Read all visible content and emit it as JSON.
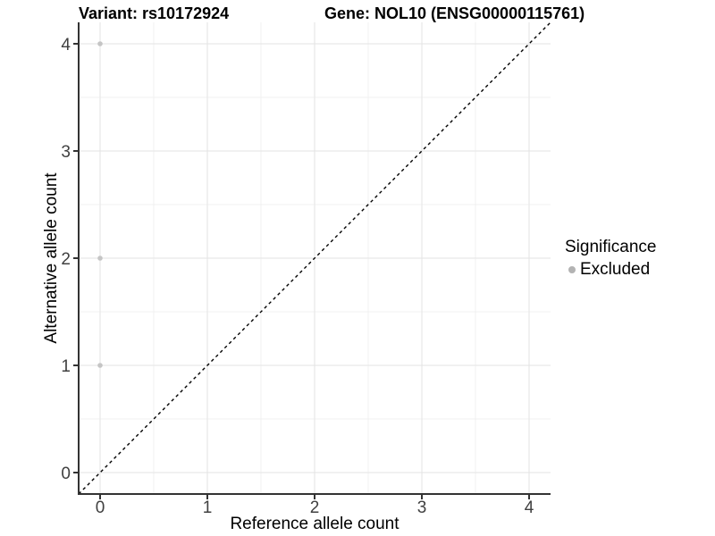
{
  "chart_data": {
    "type": "scatter",
    "title_left": "Variant: rs10172924",
    "title_right": "Gene: NOL10 (ENSG00000115761)",
    "xlabel": "Reference allele count",
    "ylabel": "Alternative allele count",
    "xlim": [
      -0.2,
      4.2
    ],
    "ylim": [
      -0.2,
      4.2
    ],
    "xticks": [
      0,
      1,
      2,
      3,
      4
    ],
    "yticks": [
      0,
      1,
      2,
      3,
      4
    ],
    "minor_tick_interval": 0.5,
    "grid": {
      "major": true,
      "minor": true
    },
    "series": [
      {
        "name": "Excluded",
        "color": "#c5c5c5",
        "points": [
          [
            0,
            1
          ],
          [
            0,
            2
          ],
          [
            0,
            4
          ]
        ]
      }
    ],
    "reference_line": {
      "kind": "identity y = x",
      "style": "dashed",
      "color": "#000000"
    },
    "legend": {
      "position": "right",
      "title": "Significance",
      "entries": [
        {
          "label": "Excluded",
          "color": "#b3b3b3"
        }
      ]
    }
  },
  "colors": {
    "background": "#ffffff",
    "grid_major": "#e3e3e3",
    "grid_minor": "#f1f1f1",
    "axis_line": "#333333",
    "tick_mark": "#333333",
    "tick_text": "#404040"
  }
}
